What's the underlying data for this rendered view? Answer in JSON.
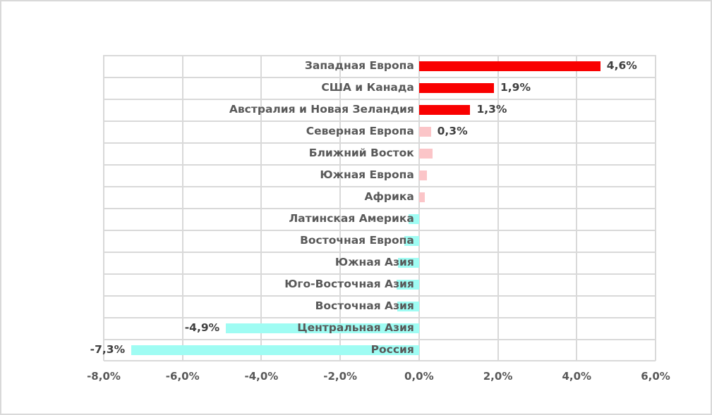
{
  "chart_data": {
    "type": "bar",
    "orientation": "horizontal",
    "title": "",
    "xlabel": "",
    "ylabel": "",
    "categories": [
      "Западная Европа",
      "США и Канада",
      "Австралия и Новая Зеландия",
      "Северная Европа",
      "Ближний Восток",
      "Южная Европа",
      "Африка",
      "Латинская Америка",
      "Восточная Европа",
      "Южная Азия",
      "Юго-Восточная Азия",
      "Восточная Азия",
      "Центральная Азия",
      "Россия"
    ],
    "values": [
      4.6,
      1.9,
      1.3,
      0.3,
      0.35,
      0.2,
      0.15,
      -0.27,
      -0.37,
      -0.53,
      -0.57,
      -0.55,
      -4.9,
      -7.3
    ],
    "data_labels": [
      "4,6%",
      "1,9%",
      "1,3%",
      "0,3%",
      "",
      "",
      "",
      "",
      "",
      "",
      "",
      "",
      "-4,9%",
      "-7,3%"
    ],
    "bar_colors": [
      "#f90000",
      "#f90000",
      "#f90000",
      "#fbc5c8",
      "#fbc5c8",
      "#fbc5c8",
      "#fbc5c8",
      "#9ffcf3",
      "#9ffcf3",
      "#9ffcf3",
      "#9ffcf3",
      "#9ffcf3",
      "#9ffcf3",
      "#9ffcf3"
    ],
    "x_axis": {
      "min": -8,
      "max": 6,
      "ticks": [
        -8,
        -6,
        -4,
        -2,
        0,
        2,
        4,
        6
      ],
      "tick_labels": [
        "-8,0%",
        "-6,0%",
        "-4,0%",
        "-2,0%",
        "0,0%",
        "2,0%",
        "4,0%",
        "6,0%"
      ]
    },
    "grid": true,
    "legend_position": "none",
    "colors": {
      "positive_strong": "#f90000",
      "positive_weak": "#fbc5c8",
      "negative": "#9ffcf3",
      "gridline": "#d9d9d9",
      "category_text": "#595959",
      "data_label_text": "#404040",
      "tick_text": "#595959",
      "background": "#ffffff",
      "frame_border": "#d9d9d9"
    }
  }
}
